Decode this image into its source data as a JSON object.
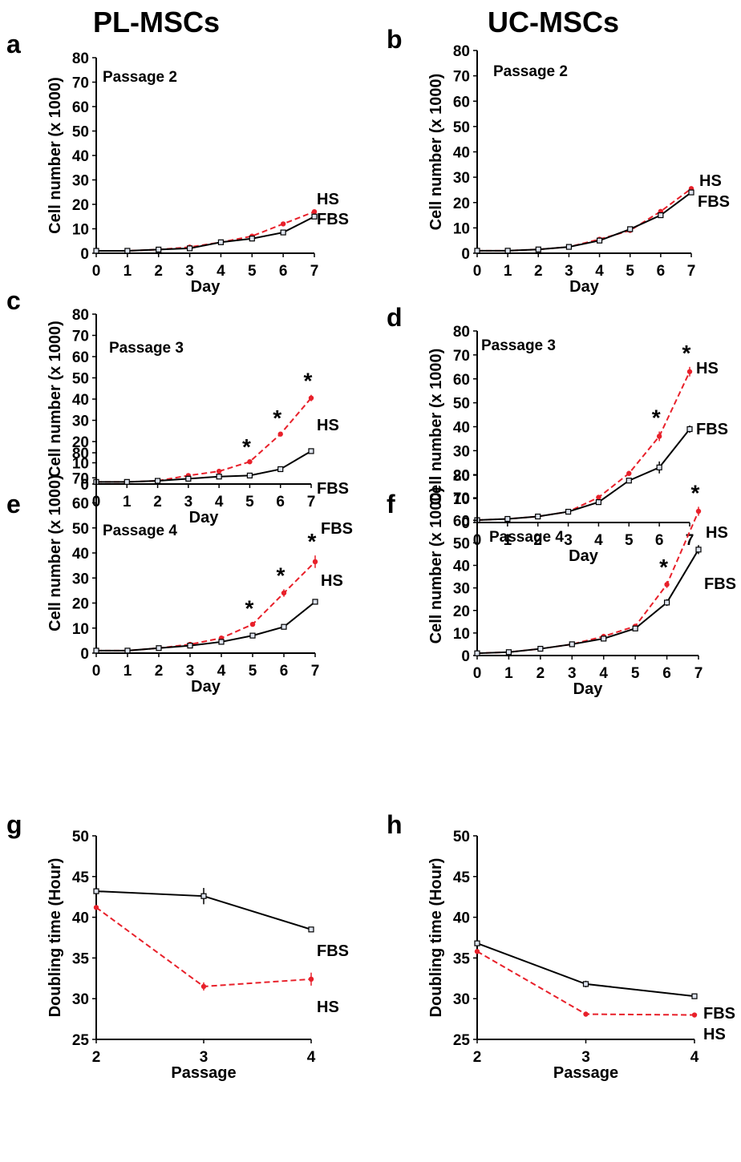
{
  "columns": [
    "PL-MSCs",
    "UC-MSCs"
  ],
  "colors": {
    "HS": "#e8202a",
    "FBS": "#000000"
  },
  "chart_data": [
    {
      "panel": "a",
      "type": "line",
      "annotation": "Passage 2",
      "xlabel": "Day",
      "ylabel": "Cell number (x 1000)",
      "xlim": [
        0,
        7
      ],
      "ylim": [
        0,
        80
      ],
      "yticks": [
        0,
        10,
        20,
        30,
        40,
        50,
        60,
        70,
        80
      ],
      "x": [
        0,
        1,
        2,
        3,
        4,
        5,
        6,
        7
      ],
      "series": [
        {
          "name": "HS",
          "values": [
            1,
            1,
            1.5,
            2.5,
            4.5,
            7,
            12,
            17
          ],
          "errors": [
            0,
            0,
            0,
            0,
            0,
            0,
            0.5,
            0.8
          ]
        },
        {
          "name": "FBS",
          "values": [
            1,
            1,
            1.5,
            2,
            4.5,
            6,
            8.5,
            15
          ],
          "errors": [
            0,
            0,
            0,
            0,
            0,
            0,
            0,
            0.5
          ]
        }
      ],
      "significant_x": []
    },
    {
      "panel": "b",
      "type": "line",
      "annotation": "Passage 2",
      "xlabel": "Day",
      "ylabel": "Cell number (x 1000)",
      "xlim": [
        0,
        7
      ],
      "ylim": [
        0,
        80
      ],
      "yticks": [
        0,
        10,
        20,
        30,
        40,
        50,
        60,
        70,
        80
      ],
      "x": [
        0,
        1,
        2,
        3,
        4,
        5,
        6,
        7
      ],
      "series": [
        {
          "name": "HS",
          "values": [
            1,
            1,
            1.5,
            2.5,
            5.5,
            9,
            16.5,
            25.5
          ],
          "errors": [
            0,
            0,
            0,
            0,
            0,
            0,
            0.5,
            0.8
          ]
        },
        {
          "name": "FBS",
          "values": [
            1,
            1,
            1.5,
            2.5,
            5,
            9.5,
            15,
            24
          ],
          "errors": [
            0,
            0,
            0,
            0,
            0,
            0,
            0.5,
            0.8
          ]
        }
      ],
      "significant_x": []
    },
    {
      "panel": "c",
      "type": "line",
      "annotation": "Passage 3",
      "xlabel": "Day",
      "ylabel": "Cell number (x 1000)",
      "xlim": [
        0,
        7
      ],
      "ylim": [
        0,
        80
      ],
      "yticks": [
        0,
        10,
        20,
        30,
        40,
        50,
        60,
        70,
        80
      ],
      "x": [
        0,
        1,
        2,
        3,
        4,
        5,
        6,
        7
      ],
      "series": [
        {
          "name": "HS",
          "values": [
            1,
            1,
            1.5,
            4,
            6,
            10.5,
            23.5,
            40.5
          ],
          "errors": [
            0,
            0,
            0,
            0,
            0,
            0.5,
            1,
            1.5
          ]
        },
        {
          "name": "FBS",
          "values": [
            1,
            1,
            1.5,
            2.5,
            3.5,
            4,
            7,
            15.5
          ],
          "errors": [
            0,
            0,
            0,
            0,
            0,
            0,
            0,
            0.5
          ]
        }
      ],
      "significant_x": [
        5,
        6,
        7
      ]
    },
    {
      "panel": "d",
      "type": "line",
      "annotation": "Passage 3",
      "xlabel": "Day",
      "ylabel": "Cell number (x 1000)",
      "xlim": [
        0,
        7
      ],
      "ylim": [
        0,
        80
      ],
      "yticks": [
        0,
        10,
        20,
        30,
        40,
        50,
        60,
        70,
        80
      ],
      "x": [
        0,
        1,
        2,
        3,
        4,
        5,
        6,
        7
      ],
      "series": [
        {
          "name": "HS",
          "values": [
            1,
            1.5,
            2.5,
            4.5,
            10.5,
            20.5,
            36,
            63
          ],
          "errors": [
            0,
            0,
            0,
            0,
            0.5,
            1,
            2,
            2
          ]
        },
        {
          "name": "FBS",
          "values": [
            1,
            1.5,
            2.5,
            4.5,
            8.5,
            17.5,
            23,
            39
          ],
          "errors": [
            0,
            0,
            0,
            0,
            0.5,
            1,
            2.5,
            1.5
          ]
        }
      ],
      "significant_x": [
        6,
        7
      ]
    },
    {
      "panel": "e",
      "type": "line",
      "annotation": "Passage 4",
      "xlabel": "Day",
      "ylabel": "Cell number (x 1000)",
      "xlim": [
        0,
        7
      ],
      "ylim": [
        0,
        80
      ],
      "yticks": [
        0,
        10,
        20,
        30,
        40,
        50,
        60,
        70,
        80
      ],
      "x": [
        0,
        1,
        2,
        3,
        4,
        5,
        6,
        7
      ],
      "series": [
        {
          "name": "HS",
          "values": [
            1,
            1,
            2,
            3.5,
            6,
            11.5,
            24,
            36.5
          ],
          "errors": [
            0,
            0,
            0,
            0,
            0.5,
            0.8,
            1.5,
            2.5
          ]
        },
        {
          "name": "FBS",
          "values": [
            1,
            1,
            2,
            3,
            4.5,
            7,
            10.5,
            20.5
          ],
          "errors": [
            0,
            0,
            0,
            0,
            0,
            0,
            0.5,
            0.5
          ]
        }
      ],
      "significant_x": [
        5,
        6,
        7
      ]
    },
    {
      "panel": "f",
      "type": "line",
      "annotation": "Passage 4",
      "xlabel": "Day",
      "ylabel": "Cell number (x 1000)",
      "xlim": [
        0,
        7
      ],
      "ylim": [
        0,
        80
      ],
      "yticks": [
        0,
        10,
        20,
        30,
        40,
        50,
        60,
        70,
        80
      ],
      "x": [
        0,
        1,
        2,
        3,
        4,
        5,
        6,
        7
      ],
      "series": [
        {
          "name": "HS",
          "values": [
            1,
            1.5,
            3,
            5,
            8.5,
            13,
            31.5,
            64
          ],
          "errors": [
            0,
            0,
            0,
            0,
            0.5,
            0.5,
            1.5,
            2
          ]
        },
        {
          "name": "FBS",
          "values": [
            1,
            1.5,
            3,
            5,
            7.5,
            12,
            23.5,
            47
          ],
          "errors": [
            0,
            0,
            0,
            0,
            0.5,
            0.5,
            1.5,
            2
          ]
        }
      ],
      "significant_x": [
        6,
        7
      ]
    },
    {
      "panel": "g",
      "type": "line",
      "annotation": "",
      "xlabel": "Passage",
      "ylabel": "Doubling time (Hour)",
      "xlim": [
        2,
        4
      ],
      "ylim": [
        25,
        50
      ],
      "yticks": [
        25,
        30,
        35,
        40,
        45,
        50
      ],
      "x": [
        2,
        3,
        4
      ],
      "series": [
        {
          "name": "FBS",
          "values": [
            43.2,
            42.6,
            38.5
          ],
          "errors": [
            0,
            1,
            0
          ]
        },
        {
          "name": "HS",
          "values": [
            41.2,
            31.5,
            32.4
          ],
          "errors": [
            0,
            0.5,
            0.8
          ]
        }
      ],
      "significant_x": []
    },
    {
      "panel": "h",
      "type": "line",
      "annotation": "",
      "xlabel": "Passage",
      "ylabel": "Doubling time (Hour)",
      "xlim": [
        2,
        4
      ],
      "ylim": [
        25,
        50
      ],
      "yticks": [
        25,
        30,
        35,
        40,
        45,
        50
      ],
      "x": [
        2,
        3,
        4
      ],
      "series": [
        {
          "name": "FBS",
          "values": [
            36.8,
            31.8,
            30.3
          ],
          "errors": [
            0,
            0.4,
            0
          ]
        },
        {
          "name": "HS",
          "values": [
            35.8,
            28.1,
            28.0
          ],
          "errors": [
            0,
            0.3,
            0
          ]
        }
      ],
      "significant_x": []
    }
  ]
}
